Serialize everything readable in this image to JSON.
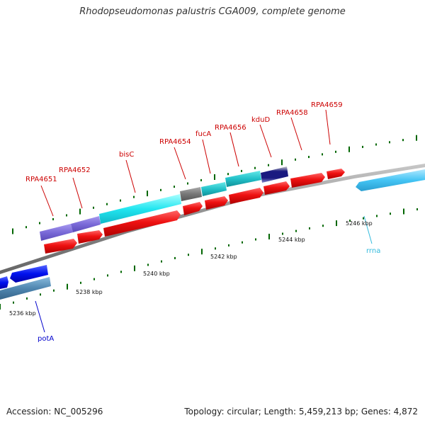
{
  "title": "Rhodopseudomonas palustris CGA009, complete genome",
  "footer": {
    "accession": "Accession: NC_005296",
    "summary": "Topology: circular; Length: 5,459,213 bp; Genes: 4,872"
  },
  "colors": {
    "backbone": "#8a8a8a",
    "cds_forward": "#ee1111",
    "tick": "#006600",
    "label_default": "#cc0000",
    "potA": "#0000cc",
    "rrna": "#33bbdd"
  },
  "ruler": [
    {
      "label": "5236 kbp"
    },
    {
      "label": "5238 kbp"
    },
    {
      "label": "5240 kbp"
    },
    {
      "label": "5242 kbp"
    },
    {
      "label": "5244 kbp"
    },
    {
      "label": "5246 kbp"
    }
  ],
  "gene_labels": [
    {
      "id": "RPA4651",
      "label": "RPA4651"
    },
    {
      "id": "RPA4652",
      "label": "RPA4652"
    },
    {
      "id": "bisC",
      "label": "bisC"
    },
    {
      "id": "RPA4654",
      "label": "RPA4654"
    },
    {
      "id": "fucA",
      "label": "fucA"
    },
    {
      "id": "RPA4656",
      "label": "RPA4656"
    },
    {
      "id": "kduD",
      "label": "kduD"
    },
    {
      "id": "RPA4658",
      "label": "RPA4658"
    },
    {
      "id": "RPA4659",
      "label": "RPA4659"
    },
    {
      "id": "potA",
      "label": "potA"
    },
    {
      "id": "rrna",
      "label": "rrna"
    }
  ]
}
